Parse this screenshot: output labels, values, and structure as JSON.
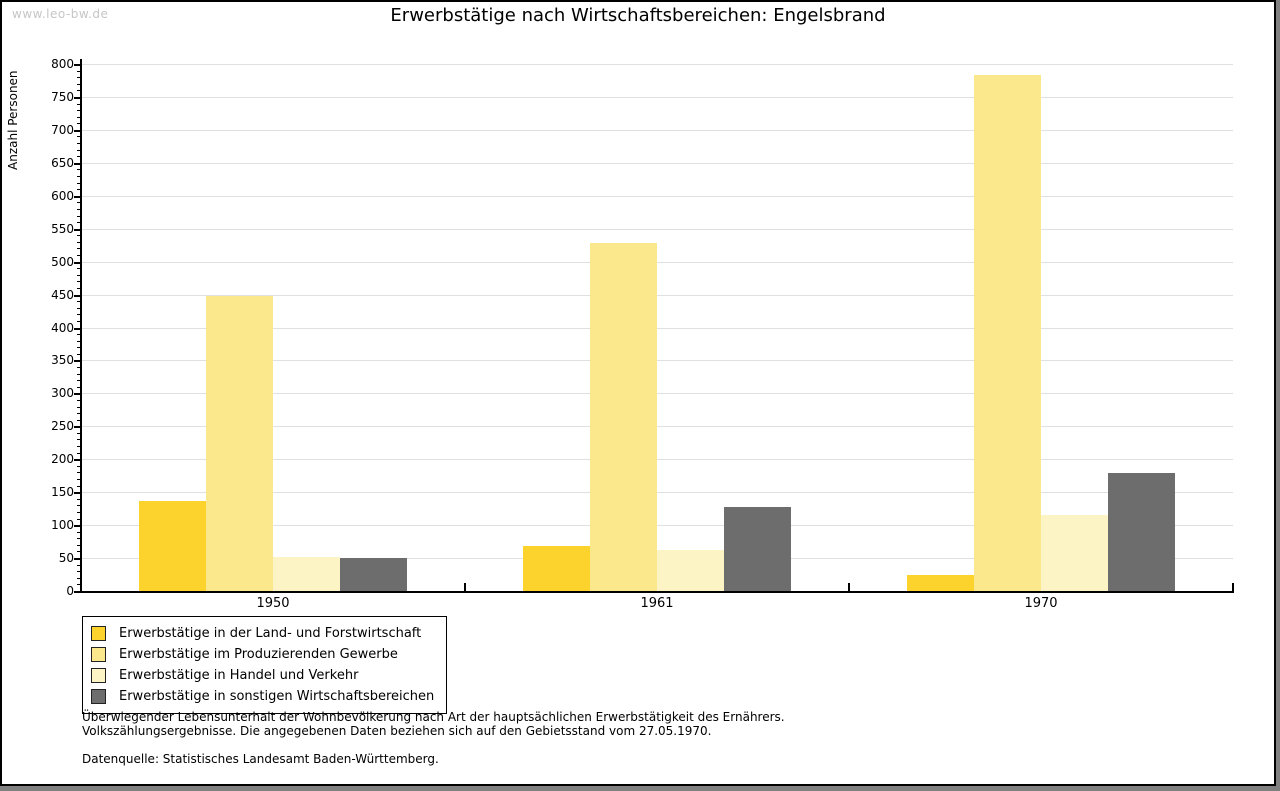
{
  "watermark": "www.leo-bw.de",
  "chart_data": {
    "type": "bar",
    "title": "Erwerbstätige nach Wirtschaftsbereichen: Engelsbrand",
    "xlabel": "",
    "ylabel": "Anzahl Personen",
    "ylim": [
      0,
      800
    ],
    "ytick_step": 50,
    "ytick_minor_step": 10,
    "grid": true,
    "legend_position": "bottom-left",
    "categories": [
      "1950",
      "1961",
      "1970"
    ],
    "series": [
      {
        "name": "Erwerbstätige in der Land- und Forstwirtschaft",
        "color": "#FCD32D",
        "values": [
          137,
          68,
          25
        ]
      },
      {
        "name": "Erwerbstätige im Produzierenden Gewerbe",
        "color": "#FBE88C",
        "values": [
          448,
          529,
          783
        ]
      },
      {
        "name": "Erwerbstätige in Handel und Verkehr",
        "color": "#FCF4C5",
        "values": [
          52,
          62,
          116
        ]
      },
      {
        "name": "Erwerbstätige in sonstigen Wirtschaftsbereichen",
        "color": "#6D6D6D",
        "values": [
          50,
          127,
          179
        ]
      }
    ]
  },
  "footer": {
    "line1": "Überwiegender Lebensunterhalt der Wohnbevölkerung nach Art der hauptsächlichen Erwerbstätigkeit des Ernährers.",
    "line2": "Volkszählungsergebnisse. Die angegebenen Daten beziehen sich auf den Gebietsstand vom 27.05.1970.",
    "source": "Datenquelle: Statistisches Landesamt Baden-Württemberg."
  },
  "colors": {
    "gridline": "#E0E0E0",
    "axis": "#000000",
    "watermark": "#C6C6C6",
    "page_background": "#808080",
    "canvas_background": "#FFFFFF"
  }
}
